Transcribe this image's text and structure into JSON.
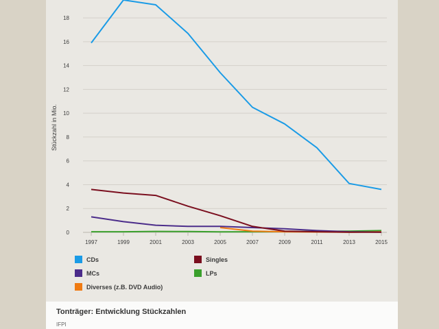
{
  "chart_data": {
    "type": "line",
    "title": "Tonträger: Entwicklung Stückzahlen",
    "source": "IFPI",
    "xlabel": "",
    "ylabel": "Stückzahl in Mio.",
    "ylim": [
      0,
      19.5
    ],
    "yticks": [
      "0",
      "2",
      "4",
      "6",
      "8",
      "10",
      "12",
      "14",
      "16",
      "18"
    ],
    "xticks": [
      "1997",
      "1999",
      "2001",
      "2003",
      "2005",
      "2007",
      "2009",
      "2011",
      "2013",
      "2015"
    ],
    "x": [
      1997,
      1999,
      2001,
      2003,
      2005,
      2007,
      2009,
      2011,
      2013,
      2015
    ],
    "grid": true,
    "legend_position": "bottom",
    "series": [
      {
        "name": "CDs",
        "color": "#1a9be6",
        "x": [
          1997,
          1999,
          2001,
          2003,
          2005,
          2007,
          2009,
          2011,
          2013,
          2015
        ],
        "values": [
          15.9,
          19.5,
          19.1,
          16.7,
          13.4,
          10.5,
          9.1,
          7.1,
          4.1,
          3.6
        ]
      },
      {
        "name": "Singles",
        "color": "#7a0e1e",
        "x": [
          1997,
          1999,
          2001,
          2003,
          2005,
          2007,
          2009,
          2011,
          2013,
          2015
        ],
        "values": [
          3.6,
          3.3,
          3.1,
          2.2,
          1.4,
          0.5,
          0.1,
          0.05,
          0.02,
          0.01
        ]
      },
      {
        "name": "MCs",
        "color": "#4b2c8a",
        "x": [
          1997,
          1999,
          2001,
          2003,
          2005,
          2007,
          2009,
          2011,
          2013,
          2015
        ],
        "values": [
          1.3,
          0.9,
          0.6,
          0.5,
          0.5,
          0.4,
          0.3,
          0.15,
          0.05,
          0.02
        ]
      },
      {
        "name": "LPs",
        "color": "#3aa02c",
        "x": [
          1997,
          1999,
          2001,
          2003,
          2005,
          2007,
          2009,
          2011,
          2013,
          2015
        ],
        "values": [
          0.05,
          0.05,
          0.08,
          0.07,
          0.04,
          0.05,
          0.06,
          0.08,
          0.1,
          0.15
        ]
      },
      {
        "name": "Diverses (z.B. DVD Audio)",
        "color": "#f07b12",
        "x": [
          2005,
          2007,
          2009,
          2011,
          2013,
          2015
        ],
        "values": [
          0.4,
          0.1,
          0.05,
          0.03,
          0.02,
          0.05
        ]
      }
    ]
  }
}
